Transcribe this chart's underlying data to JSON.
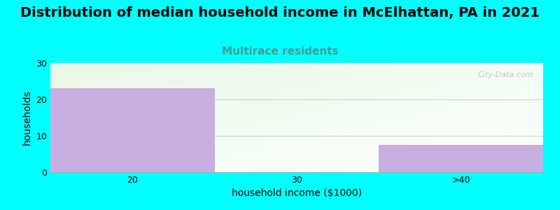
{
  "title": "Distribution of median household income in McElhattan, PA in 2021",
  "subtitle": "Multirace residents",
  "xlabel": "household income ($1000)",
  "ylabel": "households",
  "categories": [
    "20",
    "30",
    ">40"
  ],
  "values": [
    23,
    0,
    7.5
  ],
  "bar_color": "#c9aee0",
  "background_color": "#00ffff",
  "plot_bg_left_top": "#e8f5e8",
  "plot_bg_right_bottom": "#f8fff8",
  "ylim": [
    0,
    30
  ],
  "yticks": [
    0,
    10,
    20,
    30
  ],
  "title_fontsize": 14,
  "subtitle_fontsize": 11,
  "subtitle_color": "#4a9a9a",
  "axis_label_fontsize": 10,
  "tick_label_fontsize": 9,
  "watermark": "City-Data.com",
  "grid_color": "#cccccc",
  "bin_edges": [
    0,
    1,
    2,
    3
  ]
}
